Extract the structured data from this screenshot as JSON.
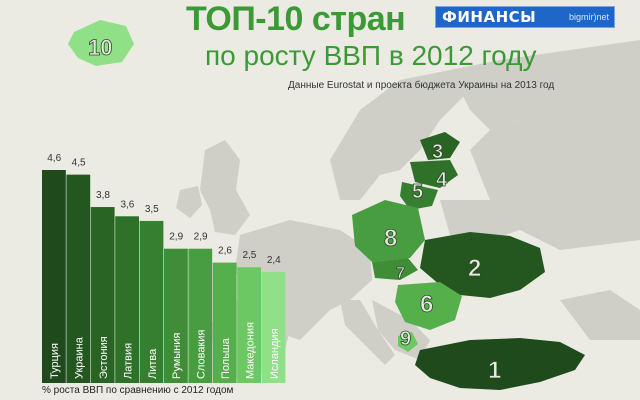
{
  "header": {
    "title": "ТОП-10 стран",
    "subtitle": "по росту ВВП в 2012 году",
    "source": "Данные Eurostat и проекта бюджета Украины на 2013 год",
    "badge_number": "10"
  },
  "brand": {
    "name": "ФИНАНСЫ",
    "tag": "bigmir)net",
    "color": "#1e67c9"
  },
  "footnote": "% роста ВВП по сравнению с 2012 годом",
  "colors": {
    "background": "#ebebe4",
    "map_land": "#cfcfc8",
    "title": "#3c9a36",
    "ranked_dark": "#1f4a1b",
    "ranked_mid": "#4f9a45",
    "ranked_light": "#8fe087"
  },
  "map_labels": [
    "1",
    "2",
    "3",
    "4",
    "5",
    "6",
    "7",
    "8",
    "9",
    "10"
  ],
  "chart_data": {
    "type": "bar",
    "title": "",
    "xlabel": "",
    "ylabel": "% роста ВВП по сравнению с 2012 годом",
    "categories": [
      "Турция",
      "Украина",
      "Эстония",
      "Латвия",
      "Литва",
      "Румыния",
      "Словакия",
      "Польша",
      "Македония",
      "Исландия"
    ],
    "values": [
      4.6,
      4.5,
      3.8,
      3.6,
      3.5,
      2.9,
      2.9,
      2.6,
      2.5,
      2.4
    ],
    "value_labels": [
      "4,6",
      "4,5",
      "3,8",
      "3,6",
      "3,5",
      "2,9",
      "2,9",
      "2,6",
      "2,5",
      "2,4"
    ],
    "bar_colors": [
      "#1f4a1b",
      "#24561f",
      "#2a6424",
      "#30712a",
      "#377f30",
      "#3f8e37",
      "#489d40",
      "#55b04c",
      "#6cc863",
      "#8fe087"
    ],
    "ylim": [
      0,
      4.6
    ],
    "grid": false,
    "legend": "none"
  }
}
